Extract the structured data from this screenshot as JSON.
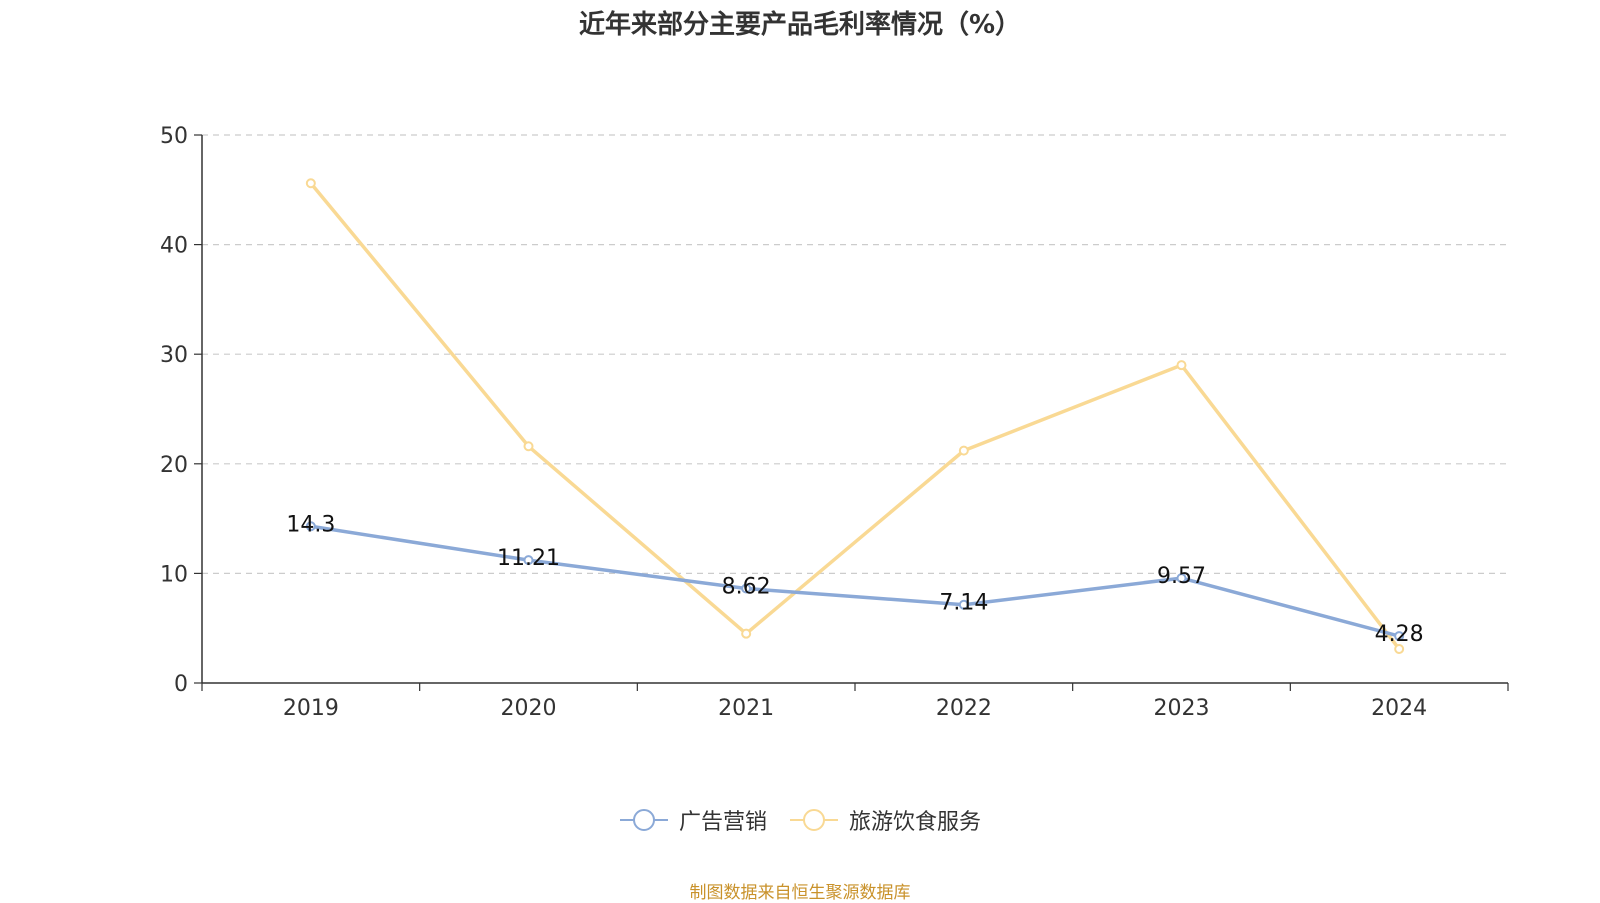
{
  "chart_data": {
    "type": "line",
    "title": "近年来部分主要产品毛利率情况（%）",
    "categories": [
      "2019",
      "2020",
      "2021",
      "2022",
      "2023",
      "2024"
    ],
    "ylim": [
      0,
      50
    ],
    "yticks": [
      0,
      10,
      20,
      30,
      40,
      50
    ],
    "grid": true,
    "legend_position": "bottom-center",
    "series": [
      {
        "name": "广告营销",
        "color": "#8ba9d7",
        "values": [
          14.3,
          11.21,
          8.62,
          7.14,
          9.57,
          4.28
        ],
        "labels": [
          "14.3",
          "11.21",
          "8.62",
          "7.14",
          "9.57",
          "4.28"
        ]
      },
      {
        "name": "旅游饮食服务",
        "color": "#f9d994",
        "values": [
          45.6,
          21.6,
          4.5,
          21.2,
          29.0,
          3.1
        ]
      }
    ],
    "source": "制图数据来自恒生聚源数据库"
  }
}
